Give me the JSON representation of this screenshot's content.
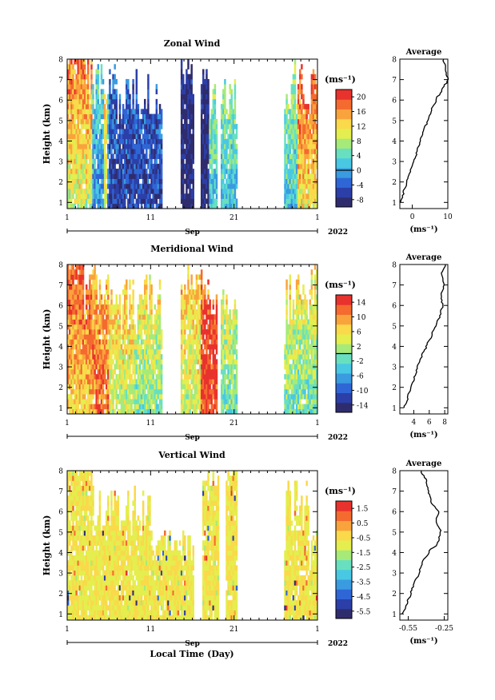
{
  "figure": {
    "xlabel": "Local Time (Day)",
    "month": "Sep",
    "year": "2022",
    "x_ticks": [
      "1",
      "11",
      "21",
      "1"
    ]
  },
  "chart_data": [
    {
      "type": "heatmap",
      "title": "Zonal Wind",
      "ylabel": "Height (km)",
      "y_ticks": [
        "1",
        "2",
        "3",
        "4",
        "5",
        "6",
        "7",
        "8"
      ],
      "colorbar_unit": "(ms⁻¹)",
      "colorbar_ticks": [
        "20",
        "16",
        "12",
        "8",
        "4",
        "0",
        "-4",
        "-8"
      ],
      "colorbar_range": [
        -10,
        22
      ],
      "colormap": [
        "#2f2c6e",
        "#2c3fa8",
        "#2f66d6",
        "#3a9be0",
        "#49c8e3",
        "#68e0c0",
        "#a6ea7a",
        "#e4ee4e",
        "#fad94a",
        "#f9a33d",
        "#f46a2f",
        "#e8322d"
      ],
      "xlim": [
        1,
        31
      ],
      "ylim": [
        0.7,
        8
      ],
      "data_gaps_days": [
        [
          12.5,
          14.5
        ],
        [
          16.2,
          17.0
        ],
        [
          19.0,
          19.4
        ],
        [
          21.5,
          27.0
        ]
      ],
      "profile": {
        "title": "Average",
        "xlabel": "(ms⁻¹)",
        "x_ticks": [
          "0",
          "10"
        ],
        "xlim": [
          -3.5,
          10
        ],
        "heights": [
          1.0,
          1.5,
          2.0,
          2.5,
          3.0,
          3.5,
          4.0,
          4.5,
          5.0,
          5.5,
          6.0,
          6.5,
          7.0,
          7.5,
          8.0
        ],
        "values": [
          -3.2,
          -2.4,
          -1.5,
          -0.6,
          0.4,
          1.3,
          2.2,
          3.2,
          4.3,
          5.4,
          6.6,
          8.4,
          10.0,
          9.4,
          8.8
        ]
      }
    },
    {
      "type": "heatmap",
      "title": "Meridional Wind",
      "ylabel": "Height (km)",
      "y_ticks": [
        "1",
        "2",
        "3",
        "4",
        "5",
        "6",
        "7",
        "8"
      ],
      "colorbar_unit": "(ms⁻¹)",
      "colorbar_ticks": [
        "14",
        "10",
        "6",
        "2",
        "-2",
        "-6",
        "-10",
        "-14"
      ],
      "colorbar_range": [
        -16,
        16
      ],
      "colormap": [
        "#2f2c6e",
        "#2c3fa8",
        "#2f66d6",
        "#3a9be0",
        "#49c8e3",
        "#68e0c0",
        "#a6ea7a",
        "#e4ee4e",
        "#fad94a",
        "#f9a33d",
        "#f46a2f",
        "#e8322d"
      ],
      "xlim": [
        1,
        31
      ],
      "ylim": [
        0.7,
        8
      ],
      "data_gaps_days": [
        [
          12.5,
          14.5
        ],
        [
          19.0,
          19.5
        ],
        [
          21.5,
          27.0
        ]
      ],
      "profile": {
        "title": "Average",
        "xlabel": "(ms⁻¹)",
        "x_ticks": [
          "4",
          "6",
          "8"
        ],
        "xlim": [
          2.2,
          8.4
        ],
        "heights": [
          1.0,
          1.5,
          2.0,
          2.5,
          3.0,
          3.5,
          4.0,
          4.5,
          5.0,
          5.5,
          6.0,
          6.5,
          7.0,
          7.5,
          8.0
        ],
        "values": [
          2.8,
          3.2,
          3.6,
          4.1,
          4.5,
          5.0,
          5.6,
          6.3,
          6.8,
          7.4,
          7.7,
          7.5,
          7.9,
          7.6,
          8.1
        ]
      }
    },
    {
      "type": "heatmap",
      "title": "Vertical Wind",
      "ylabel": "Height (km)",
      "y_ticks": [
        "1",
        "2",
        "3",
        "4",
        "5",
        "6",
        "7",
        "8"
      ],
      "colorbar_unit": "(ms⁻¹)",
      "colorbar_ticks": [
        "1.5",
        "0.5",
        "-0.5",
        "-1.5",
        "-2.5",
        "-3.5",
        "-4.5",
        "-5.5"
      ],
      "colorbar_range": [
        -6,
        2
      ],
      "colormap": [
        "#2f2c6e",
        "#2c3fa8",
        "#2f66d6",
        "#3a9be0",
        "#49c8e3",
        "#68e0c0",
        "#a6ea7a",
        "#e4ee4e",
        "#fad94a",
        "#f9a33d",
        "#f46a2f",
        "#e8322d"
      ],
      "xlim": [
        1,
        31
      ],
      "ylim": [
        0.7,
        8
      ],
      "data_gaps_days": [
        [
          16.2,
          17.2
        ],
        [
          19.3,
          20.0
        ],
        [
          21.5,
          27.0
        ]
      ],
      "profile": {
        "title": "Average",
        "xlabel": "(ms⁻¹)",
        "x_ticks": [
          "-0.55",
          "-0.25"
        ],
        "xlim": [
          -0.62,
          -0.22
        ],
        "heights": [
          1.0,
          1.5,
          2.0,
          2.5,
          3.0,
          3.5,
          4.0,
          4.5,
          5.0,
          5.5,
          6.0,
          6.5,
          7.0,
          7.5,
          8.0
        ],
        "values": [
          -0.6,
          -0.56,
          -0.53,
          -0.5,
          -0.46,
          -0.43,
          -0.38,
          -0.3,
          -0.28,
          -0.32,
          -0.3,
          -0.36,
          -0.38,
          -0.4,
          -0.44
        ]
      }
    }
  ]
}
